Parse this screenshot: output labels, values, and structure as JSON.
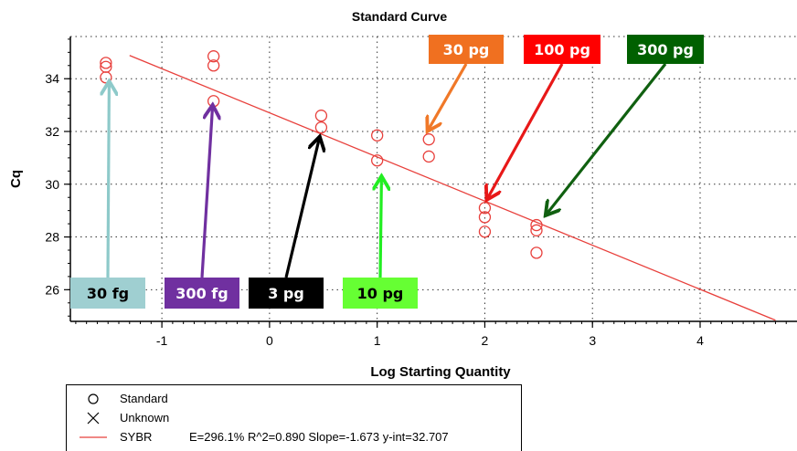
{
  "chart_data": {
    "type": "scatter",
    "title": "Standard Curve",
    "xlabel": "Log Starting Quantity",
    "ylabel": "Cq",
    "xlim": [
      -1.85,
      4.9
    ],
    "ylim": [
      24.8,
      35.6
    ],
    "xticks": [
      -1,
      0,
      1,
      2,
      3,
      4
    ],
    "yticks": [
      26,
      28,
      30,
      32,
      34
    ],
    "grid": true,
    "series": [
      {
        "name": "Standard",
        "marker": "open-circle",
        "color": "#e8403c",
        "points": [
          {
            "x": -1.52,
            "y": 34.6
          },
          {
            "x": -1.52,
            "y": 34.45
          },
          {
            "x": -1.52,
            "y": 34.05
          },
          {
            "x": -0.52,
            "y": 34.85
          },
          {
            "x": -0.52,
            "y": 34.5
          },
          {
            "x": -0.52,
            "y": 33.15
          },
          {
            "x": 0.48,
            "y": 32.6
          },
          {
            "x": 0.48,
            "y": 32.15
          },
          {
            "x": 1.0,
            "y": 31.85
          },
          {
            "x": 1.0,
            "y": 30.9
          },
          {
            "x": 1.48,
            "y": 31.7
          },
          {
            "x": 1.48,
            "y": 31.05
          },
          {
            "x": 2.0,
            "y": 29.1
          },
          {
            "x": 2.0,
            "y": 28.75
          },
          {
            "x": 2.0,
            "y": 28.2
          },
          {
            "x": 2.48,
            "y": 28.45
          },
          {
            "x": 2.48,
            "y": 28.25
          },
          {
            "x": 2.48,
            "y": 27.4
          }
        ]
      }
    ],
    "fit_line": {
      "name": "SYBR",
      "slope": -1.673,
      "intercept": 32.707,
      "x_range": [
        -1.3,
        4.7
      ],
      "color": "#e8403c"
    },
    "annotations": [
      {
        "label": "30 fg",
        "bg": "#9fcfd1",
        "fg": "#000000",
        "arrow_color": "#8ecaca",
        "target": {
          "x": -1.49,
          "y": 33.8
        }
      },
      {
        "label": "300 fg",
        "bg": "#7030a0",
        "fg": "#ffffff",
        "arrow_color": "#7030a0",
        "target": {
          "x": -0.53,
          "y": 32.9
        }
      },
      {
        "label": "3 pg",
        "bg": "#000000",
        "fg": "#ffffff",
        "arrow_color": "#000000",
        "target": {
          "x": 0.46,
          "y": 31.7
        }
      },
      {
        "label": "10 pg",
        "bg": "#66ff33",
        "fg": "#000000",
        "arrow_color": "#22ee22",
        "target": {
          "x": 1.04,
          "y": 30.2
        }
      },
      {
        "label": "30 pg",
        "bg": "#f07020",
        "fg": "#ffffff",
        "arrow_color": "#f07828",
        "target": {
          "x": 1.48,
          "y": 32.1
        }
      },
      {
        "label": "100 pg",
        "bg": "#ff0000",
        "fg": "#ffffff",
        "arrow_color": "#e81818",
        "target": {
          "x": 2.03,
          "y": 29.5
        }
      },
      {
        "label": "300 pg",
        "bg": "#006000",
        "fg": "#ffffff",
        "arrow_color": "#106010",
        "target": {
          "x": 2.58,
          "y": 28.9
        }
      }
    ]
  },
  "legend": {
    "items": [
      {
        "symbol": "circle",
        "label": "Standard",
        "stats": ""
      },
      {
        "symbol": "cross",
        "label": "Unknown",
        "stats": ""
      },
      {
        "symbol": "line",
        "label": "SYBR",
        "stats": "E=296.1% R^2=0.890 Slope=-1.673 y-int=32.707"
      }
    ]
  }
}
